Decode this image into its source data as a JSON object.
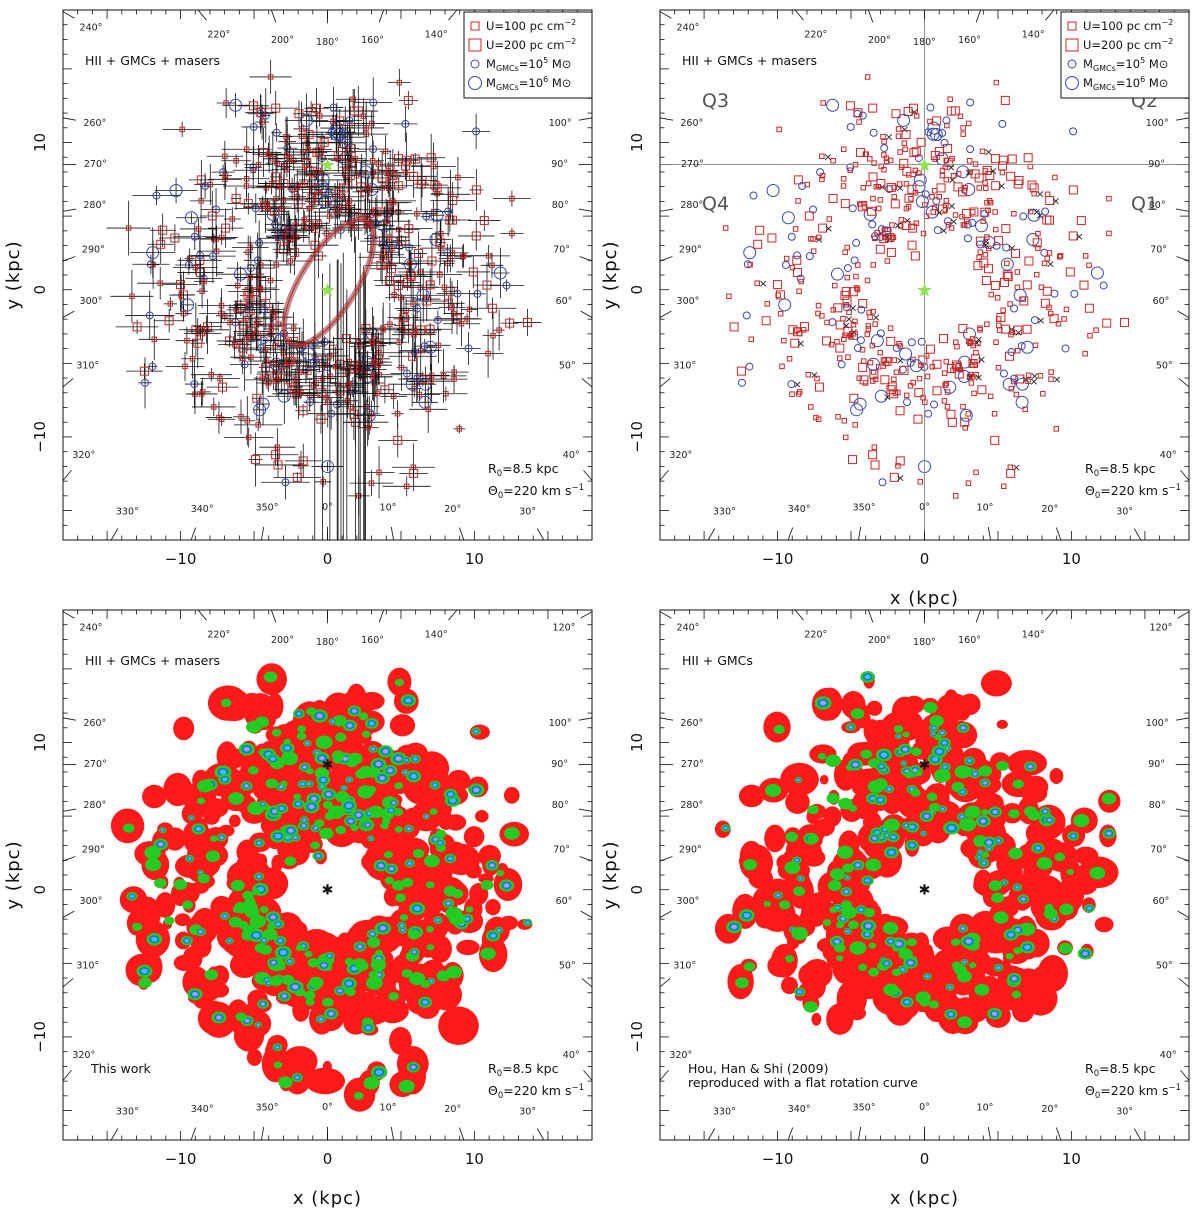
{
  "chart_data": [
    {
      "id": "tl",
      "type": "scatter",
      "xlabel": "x (kpc)",
      "ylabel": "y (kpc)",
      "xlim": [
        -18,
        18
      ],
      "ylim": [
        -17,
        19
      ],
      "xticks": [
        -10,
        0,
        10
      ],
      "yticks": [
        -10,
        0,
        10
      ],
      "show_x_title": false,
      "show_tick_labels_x": true,
      "sample_label": "HII + GMCs + masers",
      "params": [
        "R0=8.5 kpc",
        "Θ0=220 km s-1"
      ],
      "params_parts": {
        "r_main": "R",
        "r_sub": "0",
        "r_rest": "=8.5 kpc",
        "t_main": "Θ",
        "t_sub": "0",
        "t_rest": "=220 km s",
        "t_sup": "−1"
      },
      "legend": [
        {
          "sym": "sq-small",
          "color": "#c62828",
          "text": "U=100 pc cm",
          "sup": "−2"
        },
        {
          "sym": "sq-large",
          "color": "#c62828",
          "text": "U=200 pc cm",
          "sup": "−2"
        },
        {
          "sym": "circ-small",
          "color": "#3949ab",
          "text": "M",
          "sub": "GMCs",
          "rest": "=10",
          "sup": "5",
          "tail": " M⊙"
        },
        {
          "sym": "circ-large",
          "color": "#3949ab",
          "text": "M",
          "sub": "GMCs",
          "rest": "=10",
          "sup": "6",
          "tail": " M⊙"
        }
      ],
      "sun": [
        0,
        8.5
      ],
      "gc": [
        0,
        0
      ],
      "style": "errorbars"
    },
    {
      "id": "tr",
      "type": "scatter",
      "xlabel": "x (kpc)",
      "ylabel": "y (kpc)",
      "xlim": [
        -18,
        18
      ],
      "ylim": [
        -17,
        19
      ],
      "xticks": [
        -10,
        0,
        10
      ],
      "yticks": [
        -10,
        0,
        10
      ],
      "show_x_title": true,
      "show_tick_labels_x": true,
      "sample_label": "HII + GMCs + masers",
      "quadrants": [
        "Q1",
        "Q2",
        "Q3",
        "Q4"
      ],
      "params": [
        "R0=8.5 kpc",
        "Θ0=220 km s-1"
      ],
      "params_parts": {
        "r_main": "R",
        "r_sub": "0",
        "r_rest": "=8.5 kpc",
        "t_main": "Θ",
        "t_sub": "0",
        "t_rest": "=220 km s",
        "t_sup": "−1"
      },
      "legend": [
        {
          "sym": "sq-small",
          "color": "#c62828",
          "text": "U=100 pc cm",
          "sup": "−2"
        },
        {
          "sym": "sq-large",
          "color": "#c62828",
          "text": "U=200 pc cm",
          "sup": "−2"
        },
        {
          "sym": "circ-small",
          "color": "#3949ab",
          "text": "M",
          "sub": "GMCs",
          "rest": "=10",
          "sup": "5",
          "tail": " M⊙"
        },
        {
          "sym": "circ-large",
          "color": "#3949ab",
          "text": "M",
          "sub": "GMCs",
          "rest": "=10",
          "sup": "6",
          "tail": " M⊙"
        }
      ],
      "sun": [
        0,
        8.5
      ],
      "gc": [
        0,
        0
      ],
      "style": "symbols"
    },
    {
      "id": "bl",
      "type": "heatmap",
      "xlabel": "x (kpc)",
      "ylabel": "y (kpc)",
      "xlim": [
        -18,
        18
      ],
      "ylim": [
        -17,
        19
      ],
      "xticks": [
        -10,
        0,
        10
      ],
      "yticks": [
        -10,
        0,
        10
      ],
      "show_x_title": true,
      "show_tick_labels_x": true,
      "sample_label": "HII + GMCs + masers",
      "corner_note": [
        "This work"
      ],
      "params": [
        "R0=8.5 kpc",
        "Θ0=220 km s-1"
      ],
      "params_parts": {
        "r_main": "R",
        "r_sub": "0",
        "r_rest": "=8.5 kpc",
        "t_main": "Θ",
        "t_sub": "0",
        "t_rest": "=220 km s",
        "t_sup": "−1"
      },
      "sun": [
        0,
        8.5
      ],
      "gc": [
        0,
        0
      ],
      "style": "density"
    },
    {
      "id": "br",
      "type": "heatmap",
      "xlabel": "x (kpc)",
      "ylabel": "y (kpc)",
      "xlim": [
        -18,
        18
      ],
      "ylim": [
        -17,
        19
      ],
      "xticks": [
        -10,
        0,
        10
      ],
      "yticks": [
        -10,
        0,
        10
      ],
      "show_x_title": true,
      "show_tick_labels_x": true,
      "sample_label": "HII + GMCs",
      "corner_note": [
        "Hou, Han & Shi (2009)",
        "reproduced with a flat rotation curve"
      ],
      "params": [
        "R0=8.5 kpc",
        "Θ0=220 km s-1"
      ],
      "params_parts": {
        "r_main": "R",
        "r_sub": "0",
        "r_rest": "=8.5 kpc",
        "t_main": "Θ",
        "t_sub": "0",
        "t_rest": "=220 km s",
        "t_sup": "−1"
      },
      "sun": [
        0,
        8.5
      ],
      "gc": [
        0,
        0
      ],
      "style": "density"
    }
  ],
  "longitudes": [
    "120°",
    "140°",
    "160°",
    "180°",
    "200°",
    "220°",
    "240°",
    "260°",
    "270°",
    "280°",
    "290°",
    "300°",
    "310°",
    "320°",
    "330°",
    "340°",
    "350°",
    "0°",
    "10°",
    "20°",
    "30°",
    "40°",
    "50°",
    "60°",
    "70°",
    "80°",
    "90°",
    "100°"
  ],
  "colors": {
    "hii_red": "#c62828",
    "gmc_blue": "#3949ab",
    "sun_green": "#8ee34f",
    "density_levels": [
      "#ff1a1a",
      "#22cc22",
      "#1f6fe0",
      "#37c5f0",
      "#d48cf2",
      "#ffe14d"
    ]
  }
}
